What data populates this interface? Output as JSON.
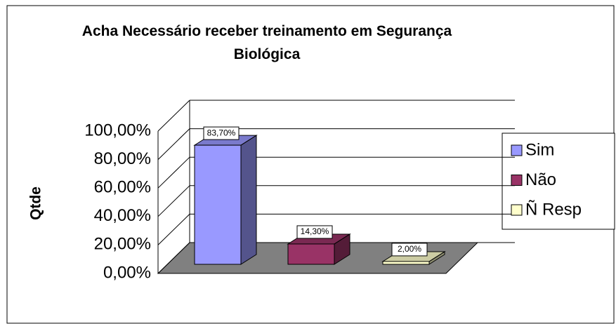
{
  "chart_data": {
    "type": "bar",
    "title": "Acha Necessário receber treinamento em Segurança Biológica",
    "y_label": "Qtde",
    "categories": [
      null
    ],
    "series": [
      {
        "name": "Sim",
        "color": "#9999ff",
        "values": [
          83.7
        ],
        "value_labels": [
          "83,70%"
        ]
      },
      {
        "name": "Não",
        "color": "#993366",
        "values": [
          14.3
        ],
        "value_labels": [
          "14,30%"
        ]
      },
      {
        "name": "Ñ Resp",
        "color": "#ffffcc",
        "values": [
          2.0
        ],
        "value_labels": [
          "2,00%"
        ]
      }
    ],
    "ylim": [
      0,
      100
    ],
    "yticks": [
      {
        "value": 0,
        "label": "0,00%"
      },
      {
        "value": 20,
        "label": "20,00%"
      },
      {
        "value": 40,
        "label": "40,00%"
      },
      {
        "value": 60,
        "label": "60,00%"
      },
      {
        "value": 80,
        "label": "80,00%"
      },
      {
        "value": 100,
        "label": "100,00%"
      }
    ],
    "grid": true,
    "legend": "right"
  }
}
